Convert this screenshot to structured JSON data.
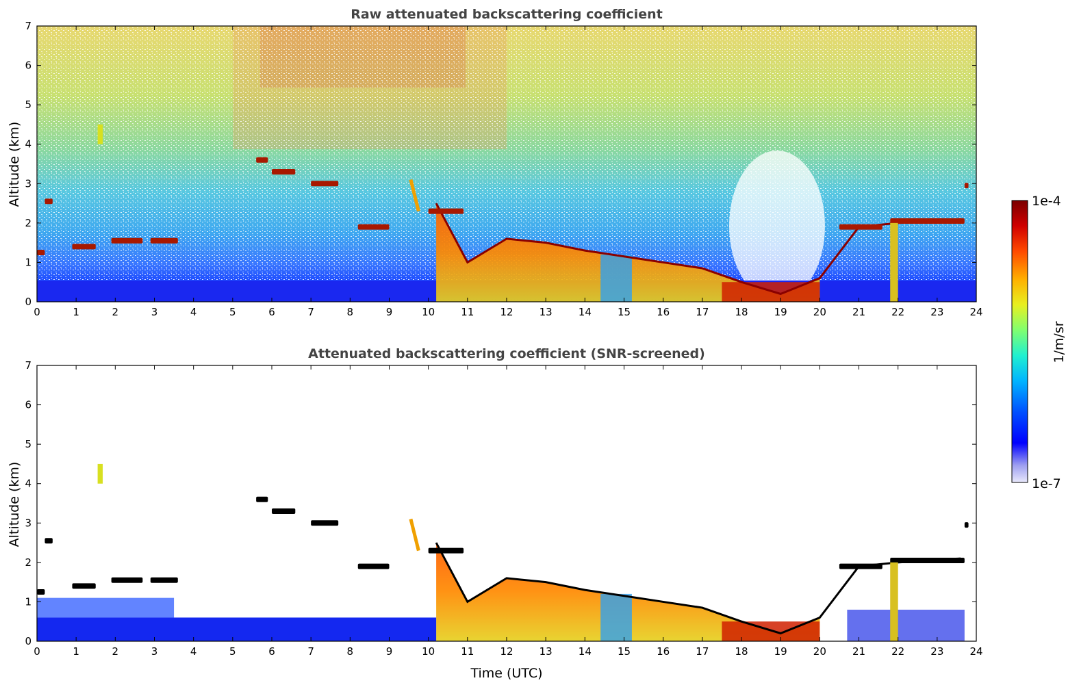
{
  "chart_data": [
    {
      "type": "heatmap",
      "title": "Raw attenuated backscattering coefficient",
      "xlabel": "",
      "ylabel": "Altitude (km)",
      "xlim": [
        0,
        24
      ],
      "ylim": [
        0,
        7
      ],
      "x_ticks": [
        0,
        1,
        2,
        3,
        4,
        5,
        6,
        7,
        8,
        9,
        10,
        11,
        12,
        13,
        14,
        15,
        16,
        17,
        18,
        19,
        20,
        21,
        22,
        23,
        24
      ],
      "y_ticks": [
        0,
        1,
        2,
        3,
        4,
        5,
        6,
        7
      ],
      "features": {
        "boundary_layer_top_km": [
          [
            0,
            0.5
          ],
          [
            10,
            0.5
          ],
          [
            10.2,
            2.5
          ],
          [
            11,
            1.0
          ],
          [
            12,
            1.6
          ],
          [
            13,
            1.5
          ],
          [
            14,
            1.3
          ],
          [
            15,
            1.15
          ],
          [
            16,
            1.0
          ],
          [
            17,
            0.85
          ],
          [
            18,
            0.5
          ],
          [
            19,
            0.2
          ],
          [
            20,
            0.6
          ],
          [
            21,
            1.9
          ],
          [
            22,
            2.0
          ],
          [
            23.6,
            2.1
          ]
        ],
        "cloud_layers": [
          {
            "x_start": 0.0,
            "x_end": 0.2,
            "alt_km": 1.25
          },
          {
            "x_start": 0.2,
            "x_end": 0.4,
            "alt_km": 2.55
          },
          {
            "x_start": 0.9,
            "x_end": 1.5,
            "alt_km": 1.4
          },
          {
            "x_start": 1.9,
            "x_end": 2.7,
            "alt_km": 1.55
          },
          {
            "x_start": 2.9,
            "x_end": 3.6,
            "alt_km": 1.55
          },
          {
            "x_start": 5.6,
            "x_end": 5.9,
            "alt_km": 3.6
          },
          {
            "x_start": 6.0,
            "x_end": 6.6,
            "alt_km": 3.3
          },
          {
            "x_start": 7.0,
            "x_end": 7.7,
            "alt_km": 3.0
          },
          {
            "x_start": 8.2,
            "x_end": 9.0,
            "alt_km": 1.9
          },
          {
            "x_start": 10.0,
            "x_end": 10.9,
            "alt_km": 2.3
          },
          {
            "x_start": 20.5,
            "x_end": 21.6,
            "alt_km": 1.9
          },
          {
            "x_start": 21.8,
            "x_end": 23.7,
            "alt_km": 2.05
          },
          {
            "x_start": 23.7,
            "x_end": 23.8,
            "alt_km": 2.95
          }
        ]
      }
    },
    {
      "type": "heatmap",
      "title": "Attenuated backscattering coefficient (SNR-screened)",
      "xlabel": "Time (UTC)",
      "ylabel": "Altitude (km)",
      "xlim": [
        0,
        24
      ],
      "ylim": [
        0,
        7
      ],
      "x_ticks": [
        0,
        1,
        2,
        3,
        4,
        5,
        6,
        7,
        8,
        9,
        10,
        11,
        12,
        13,
        14,
        15,
        16,
        17,
        18,
        19,
        20,
        21,
        22,
        23,
        24
      ],
      "y_ticks": [
        0,
        1,
        2,
        3,
        4,
        5,
        6,
        7
      ]
    }
  ],
  "colorbar": {
    "label": "1/m/sr",
    "max_label": "1e-4",
    "min_label": "1e-7",
    "scale": "log",
    "colormap": [
      "#ffffff",
      "#d6d6f5",
      "#0000ff",
      "#0060ff",
      "#00c8ff",
      "#40ffb0",
      "#b0ff40",
      "#ffe000",
      "#ff8000",
      "#ff2000",
      "#c00000",
      "#800000"
    ]
  }
}
